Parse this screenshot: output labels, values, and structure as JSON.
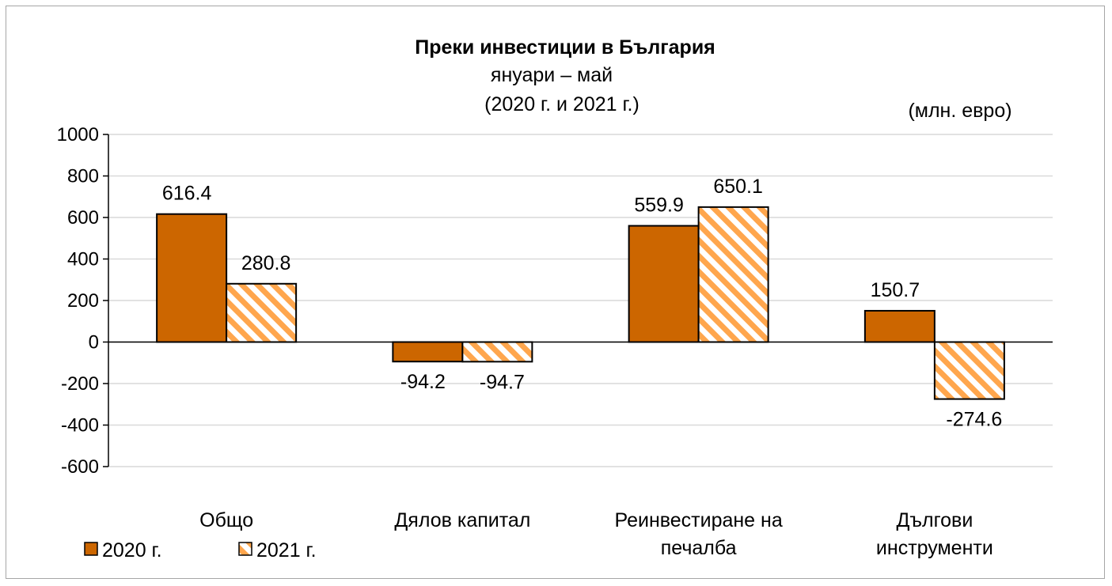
{
  "chart_data": {
    "type": "bar",
    "title": "Преки  инвестиции в България",
    "subtitle_line1": "януари – май",
    "subtitle_line2": "(2020 г. и 2021 г.)",
    "unit_label": "(млн. евро)",
    "categories": [
      [
        "Общо"
      ],
      [
        "Дялов капитал"
      ],
      [
        "Реинвестиране на",
        "печалба"
      ],
      [
        "Дългови",
        "инструменти"
      ]
    ],
    "series": [
      {
        "name": "2020 г.",
        "values": [
          616.4,
          -94.2,
          559.9,
          150.7
        ],
        "labels": [
          "616.4",
          "-94.2",
          "559.9",
          "150.7"
        ],
        "color": "#cc6600"
      },
      {
        "name": "2021 г.",
        "values": [
          280.8,
          -94.7,
          650.1,
          -274.6
        ],
        "labels": [
          "280.8",
          "-94.7",
          "650.1",
          "-274.6"
        ],
        "color": "#ffa64d",
        "pattern": "diagonal-hatch"
      }
    ],
    "ylim": [
      -600,
      1000
    ],
    "yticks": [
      1000,
      800,
      600,
      400,
      200,
      0,
      -200,
      -400,
      -600
    ],
    "grid": true,
    "legend_placement": "bottom-left"
  }
}
